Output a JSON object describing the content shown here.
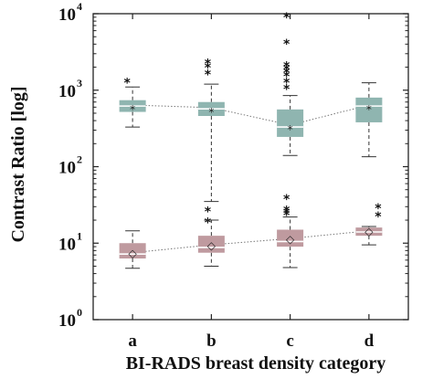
{
  "chart_data": {
    "type": "box",
    "xlabel": "BI-RADS breast density category",
    "ylabel": "Contrast Ratio [log]",
    "yscale": "log",
    "ylim": [
      1,
      10000
    ],
    "ytick_labels": [
      {
        "base": "10",
        "exp": "0",
        "value": 1
      },
      {
        "base": "10",
        "exp": "1",
        "value": 10
      },
      {
        "base": "10",
        "exp": "2",
        "value": 100
      },
      {
        "base": "10",
        "exp": "3",
        "value": 1000
      },
      {
        "base": "10",
        "exp": "4",
        "value": 10000
      }
    ],
    "categories": [
      "a",
      "b",
      "c",
      "d"
    ],
    "grid": false,
    "mean_marker": "*",
    "series": [
      {
        "color": "#8fb5b0",
        "mean_symbol": "*",
        "boxes": [
          {
            "whisker_low": 330,
            "q1": 520,
            "median": 620,
            "q3": 740,
            "whisker_high": 1100,
            "mean": 640,
            "outliers": [
              1400
            ]
          },
          {
            "whisker_low": 35,
            "q1": 460,
            "median": 570,
            "q3": 700,
            "whisker_high": 1200,
            "mean": 590,
            "outliers": [
              29,
              21,
              1800,
              2200,
              2500
            ]
          },
          {
            "whisker_low": 140,
            "q1": 245,
            "median": 330,
            "q3": 560,
            "whisker_high": 850,
            "mean": 350,
            "outliers": [
              26,
              28,
              30,
              42,
              1150,
              1400,
              1700,
              1900,
              2100,
              2300,
              4500,
              10000
            ]
          },
          {
            "whisker_low": 135,
            "q1": 380,
            "median": 620,
            "q3": 800,
            "whisker_high": 1250,
            "mean": 640,
            "outliers": []
          }
        ]
      },
      {
        "color": "#bf9a9f",
        "mean_symbol": "◇",
        "boxes": [
          {
            "whisker_low": 4.7,
            "q1": 6.3,
            "median": 7.2,
            "q3": 10,
            "whisker_high": 14.5,
            "mean": 7.5,
            "outliers": []
          },
          {
            "whisker_low": 5.0,
            "q1": 7.5,
            "median": 8.8,
            "q3": 12.5,
            "whisker_high": 20,
            "mean": 9.5,
            "outliers": []
          },
          {
            "whisker_low": 4.8,
            "q1": 9.0,
            "median": 10.5,
            "q3": 15,
            "whisker_high": 22,
            "mean": 11.5,
            "outliers": []
          },
          {
            "whisker_low": 9.5,
            "q1": 12.5,
            "median": 14,
            "q3": 16,
            "whisker_high": 16.5,
            "mean": 14.5,
            "outliers": [
              25,
              32
            ]
          }
        ]
      }
    ]
  }
}
